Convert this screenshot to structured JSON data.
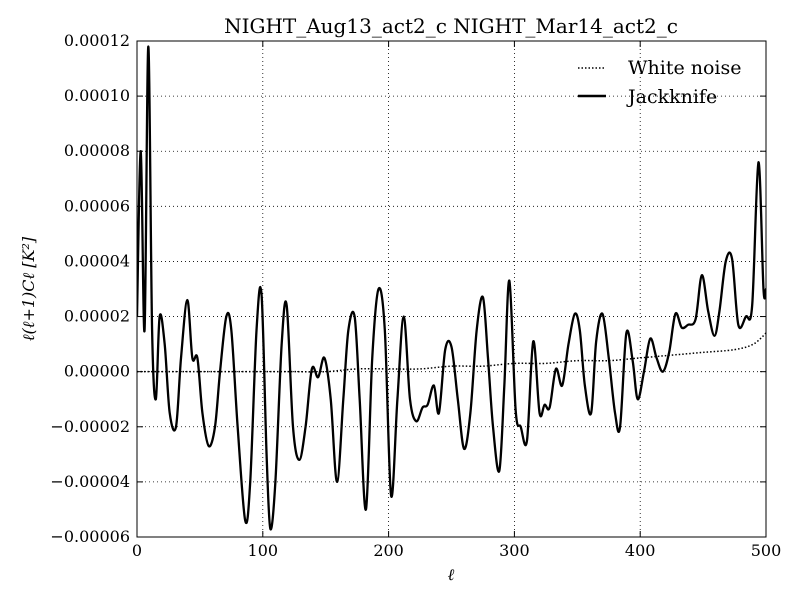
{
  "chart_data": {
    "type": "line",
    "title": "NIGHT_Aug13_act2_c NIGHT_Mar14_act2_c",
    "xlabel": "ℓ",
    "ylabel": "ℓ(ℓ+1)Cℓ [K²]",
    "xlim": [
      0,
      500
    ],
    "ylim": [
      -6e-05,
      0.00012
    ],
    "xticks": [
      0,
      100,
      200,
      300,
      400,
      500
    ],
    "xtick_labels": [
      "0",
      "100",
      "200",
      "300",
      "400",
      "500"
    ],
    "yticks": [
      -6e-05,
      -4e-05,
      -2e-05,
      0.0,
      2e-05,
      4e-05,
      6e-05,
      8e-05,
      0.0001,
      0.00012
    ],
    "ytick_labels": [
      "−0.00006",
      "−0.00004",
      "−0.00002",
      "0.00000",
      "0.00002",
      "0.00004",
      "0.00006",
      "0.00008",
      "0.00010",
      "0.00012"
    ],
    "grid": true,
    "legend_position": "top-right",
    "series": [
      {
        "name": "White noise",
        "style": "dotted",
        "color": "#000000",
        "x": [
          0,
          25,
          50,
          75,
          100,
          125,
          150,
          175,
          200,
          225,
          250,
          275,
          300,
          325,
          350,
          375,
          400,
          425,
          450,
          475,
          490,
          500
        ],
        "y": [
          0.0,
          0.0,
          0.0,
          0.0,
          0.0,
          0.0,
          0.0,
          1e-06,
          1e-06,
          1e-06,
          2e-06,
          2e-06,
          3e-06,
          3e-06,
          4e-06,
          4e-06,
          5e-06,
          6e-06,
          7e-06,
          8e-06,
          1e-05,
          1.4e-05
        ]
      },
      {
        "name": "Jackknife",
        "style": "solid",
        "color": "#000000",
        "x": [
          0,
          3,
          6,
          9,
          12,
          15,
          18,
          22,
          26,
          31,
          35,
          40,
          44,
          48,
          52,
          57,
          62,
          66,
          71,
          75,
          80,
          86,
          90,
          95,
          99,
          103,
          106,
          110,
          115,
          119,
          124,
          129,
          134,
          139,
          144,
          149,
          154,
          159,
          164,
          168,
          173,
          177,
          182,
          187,
          192,
          197,
          202,
          207,
          212,
          217,
          222,
          227,
          231,
          236,
          240,
          245,
          250,
          255,
          260,
          265,
          270,
          275,
          279,
          283,
          288,
          292,
          296,
          301,
          305,
          310,
          315,
          320,
          324,
          328,
          333,
          338,
          343,
          348,
          352,
          356,
          361,
          365,
          370,
          375,
          380,
          384,
          389,
          394,
          398,
          403,
          408,
          413,
          418,
          423,
          428,
          433,
          438,
          444,
          449,
          454,
          459,
          463,
          468,
          473,
          478,
          484,
          489,
          494,
          498,
          500
        ],
        "y": [
          2e-05,
          8e-05,
          1.5e-05,
          0.000118,
          1.5e-05,
          -1e-05,
          2e-05,
          1e-05,
          -1.5e-05,
          -2e-05,
          5e-06,
          2.6e-05,
          5e-06,
          5e-06,
          -1.5e-05,
          -2.7e-05,
          -2e-05,
          0.0,
          2e-05,
          1.5e-05,
          -2e-05,
          -5.4e-05,
          -4e-05,
          1.5e-05,
          2.8e-05,
          -3e-05,
          -5.7e-05,
          -4e-05,
          1e-05,
          2.4e-05,
          -2e-05,
          -3.2e-05,
          -2e-05,
          1e-06,
          -2e-06,
          5e-06,
          -1e-05,
          -4e-05,
          -1e-05,
          1.5e-05,
          2e-05,
          -1e-05,
          -5e-05,
          5e-06,
          3e-05,
          1.5e-05,
          -4.5e-05,
          -1e-05,
          2e-05,
          -1e-05,
          -1.8e-05,
          -1.3e-05,
          -1.2e-05,
          -5e-06,
          -1.5e-05,
          8e-06,
          9e-06,
          -1e-05,
          -2.8e-05,
          -1.5e-05,
          1.5e-05,
          2.7e-05,
          5e-06,
          -2e-05,
          -3.6e-05,
          -5e-06,
          3.3e-05,
          -1.4e-05,
          -2e-05,
          -2.5e-05,
          1.1e-05,
          -1.5e-05,
          -1.2e-05,
          -1.3e-05,
          1e-06,
          -5e-06,
          1e-05,
          2.1e-05,
          1.5e-05,
          -5e-06,
          -1.5e-05,
          1.1e-05,
          2.1e-05,
          5e-06,
          -1.5e-05,
          -2e-05,
          1.4e-05,
          4e-06,
          -1e-05,
          0.0,
          1.2e-05,
          5e-06,
          0.0,
          7e-06,
          2.1e-05,
          1.6e-05,
          1.7e-05,
          1.9e-05,
          3.5e-05,
          2.2e-05,
          1.3e-05,
          2.2e-05,
          4e-05,
          4.1e-05,
          1.7e-05,
          2e-05,
          2.4e-05,
          7.6e-05,
          3e-05,
          3e-05
        ]
      }
    ]
  }
}
